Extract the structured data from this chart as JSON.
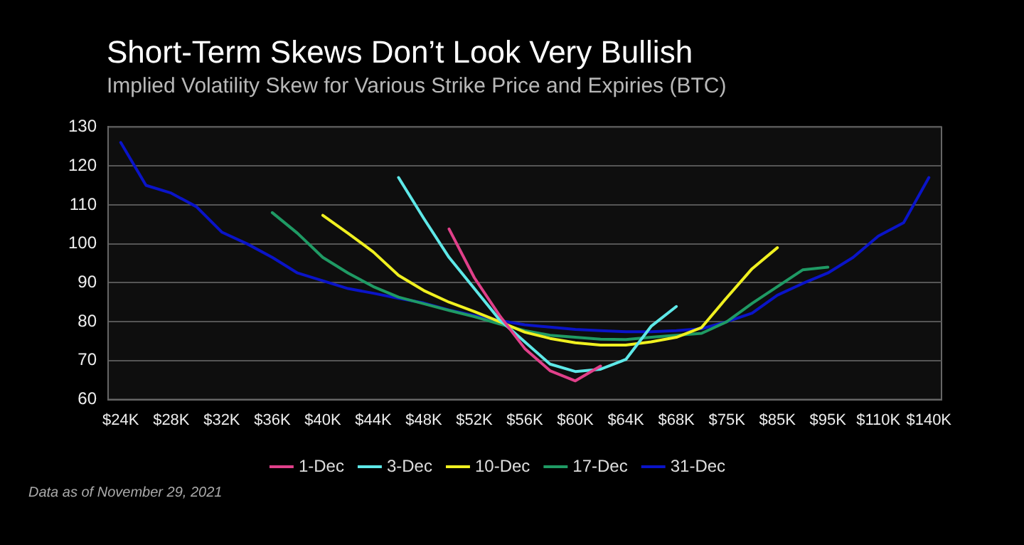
{
  "chart_data": {
    "type": "line",
    "title": "Short-Term Skews Don’t Look Very Bullish",
    "subtitle": "Implied Volatility Skew for Various Strike Price and Expiries (BTC)",
    "categories": [
      "$24K",
      null,
      "$28K",
      null,
      "$32K",
      null,
      "$36K",
      null,
      "$40K",
      null,
      "$44K",
      null,
      "$48K",
      null,
      "$52K",
      null,
      "$56K",
      null,
      "$60K",
      null,
      "$64K",
      null,
      "$68K",
      null,
      "$75K",
      null,
      "$85K",
      null,
      "$95K",
      null,
      "$110K",
      null,
      "$140K"
    ],
    "series": [
      {
        "name": "1-Dec",
        "color": "#e0408a",
        "values": [
          null,
          null,
          null,
          null,
          null,
          null,
          null,
          null,
          null,
          null,
          null,
          null,
          null,
          103.8,
          91.3,
          81.6,
          73.1,
          67.4,
          64.8,
          68.6,
          null,
          null,
          null,
          null,
          null,
          null,
          null,
          null,
          null,
          null,
          null,
          null,
          null
        ]
      },
      {
        "name": "3-Dec",
        "color": "#5ee8e8",
        "values": [
          null,
          null,
          null,
          null,
          null,
          null,
          null,
          null,
          null,
          null,
          null,
          117,
          106.5,
          96.5,
          88.5,
          80.5,
          74.8,
          69.1,
          67.2,
          67.8,
          70.3,
          78.8,
          83.9,
          null,
          null,
          null,
          null,
          null,
          null,
          null,
          null,
          null,
          null
        ]
      },
      {
        "name": "10-Dec",
        "color": "#f0f020",
        "values": [
          null,
          null,
          null,
          null,
          null,
          null,
          null,
          null,
          107.3,
          102.7,
          97.9,
          91.9,
          88,
          85,
          82.6,
          80,
          77.3,
          75.7,
          74.6,
          74,
          74,
          74.8,
          76,
          78.5,
          86.2,
          93.6,
          99,
          null,
          null,
          null,
          null,
          null,
          null
        ]
      },
      {
        "name": "17-Dec",
        "color": "#1f9a64",
        "values": [
          null,
          null,
          null,
          null,
          null,
          null,
          108,
          102.7,
          96.5,
          92.5,
          89,
          86.3,
          84.6,
          82.9,
          81.3,
          79.4,
          77.7,
          76.5,
          76,
          75.5,
          75.4,
          76,
          76.5,
          77,
          80,
          84.7,
          89,
          93.3,
          94,
          null,
          null,
          null,
          null
        ]
      },
      {
        "name": "31-Dec",
        "color": "#0a14c8",
        "values": [
          126,
          115,
          113,
          109.5,
          103,
          100,
          96.5,
          92.5,
          90.5,
          88.5,
          87.3,
          86,
          84.8,
          83,
          81.6,
          80.3,
          79.2,
          78.6,
          78,
          77.7,
          77.4,
          77.4,
          77.7,
          78.2,
          80,
          82.2,
          86.8,
          89.8,
          92.5,
          96.5,
          102,
          105.4,
          117
        ]
      }
    ],
    "ylim": [
      60,
      130
    ],
    "yticks": [
      60,
      70,
      80,
      90,
      100,
      110,
      120,
      130
    ],
    "grid": "y",
    "legend": "bottom",
    "marker": "none",
    "line_style": "solid",
    "annotations": [
      "Data as of November 29, 2021"
    ]
  }
}
